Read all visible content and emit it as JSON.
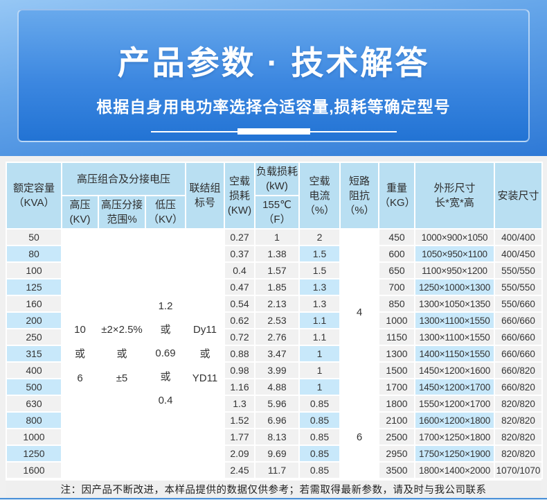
{
  "hero": {
    "title": "产品参数 · 技术解答",
    "subtitle": "根据自身用电功率选择合适容量,损耗等确定型号"
  },
  "colors": {
    "hero_top": "#96c7f5",
    "hero_bottom": "#2273d4",
    "header_cell": "#b9dff2",
    "stripe_blue": "#c8e8fa",
    "cell_gray": "#f1f1f1",
    "footer_line": "#4a90d8",
    "footer_strip": "#d8ebfa"
  },
  "table": {
    "header": {
      "capacity": [
        "额定容量",
        "（KVA）"
      ],
      "hv_group": "高压组合及分接电压",
      "hv": [
        "高压",
        "(KV)"
      ],
      "hv_tap": [
        "高压分接",
        "范围%"
      ],
      "lv": [
        "低压",
        "（KV）"
      ],
      "vector": [
        "联结组",
        "标号"
      ],
      "no_load_loss": [
        "空载",
        "损耗",
        "(KW)"
      ],
      "load_loss": [
        "负载损耗",
        "(kW)"
      ],
      "load_loss_sub": [
        "155℃",
        "（F）"
      ],
      "no_load_current": [
        "空载",
        "电流",
        "（%）"
      ],
      "impedance": [
        "短路",
        "阻抗",
        "（%）"
      ],
      "weight": [
        "重量",
        "（KG）"
      ],
      "dims": [
        "外形尺寸",
        "长*宽*高"
      ],
      "install": "安装尺寸"
    },
    "merged": {
      "hv_lines": [
        "10",
        "或",
        "6"
      ],
      "hv_tap_lines": [
        "±2×2.5%",
        "或",
        "±5"
      ],
      "lv_lines": [
        "1.2",
        "或",
        "0.69",
        "或",
        "0.4"
      ],
      "vector_lines": [
        "Dy11",
        "或",
        "YD11"
      ],
      "impedance_top": "4",
      "impedance_bottom": "6"
    },
    "rows": [
      {
        "kva": "50",
        "no_load_loss": "0.27",
        "load_loss": "1",
        "no_load_current": "2",
        "weight": "450",
        "dims": "1000×900×1050",
        "install": "400/400"
      },
      {
        "kva": "80",
        "no_load_loss": "0.37",
        "load_loss": "1.38",
        "no_load_current": "1.5",
        "weight": "600",
        "dims": "1050×950×1100",
        "install": "400/450"
      },
      {
        "kva": "100",
        "no_load_loss": "0.4",
        "load_loss": "1.57",
        "no_load_current": "1.5",
        "weight": "650",
        "dims": "1100×950×1200",
        "install": "550/550"
      },
      {
        "kva": "125",
        "no_load_loss": "0.47",
        "load_loss": "1.85",
        "no_load_current": "1.3",
        "weight": "700",
        "dims": "1250×1000×1300",
        "install": "550/550"
      },
      {
        "kva": "160",
        "no_load_loss": "0.54",
        "load_loss": "2.13",
        "no_load_current": "1.3",
        "weight": "850",
        "dims": "1300×1050×1350",
        "install": "550/660"
      },
      {
        "kva": "200",
        "no_load_loss": "0.62",
        "load_loss": "2.53",
        "no_load_current": "1.1",
        "weight": "1000",
        "dims": "1300×1100×1550",
        "install": "660/660"
      },
      {
        "kva": "250",
        "no_load_loss": "0.72",
        "load_loss": "2.76",
        "no_load_current": "1.1",
        "weight": "1150",
        "dims": "1300×1100×1550",
        "install": "660/660"
      },
      {
        "kva": "315",
        "no_load_loss": "0.88",
        "load_loss": "3.47",
        "no_load_current": "1",
        "weight": "1300",
        "dims": "1400×1150×1550",
        "install": "660/660"
      },
      {
        "kva": "400",
        "no_load_loss": "0.98",
        "load_loss": "3.99",
        "no_load_current": "1",
        "weight": "1500",
        "dims": "1450×1200×1600",
        "install": "660/820"
      },
      {
        "kva": "500",
        "no_load_loss": "1.16",
        "load_loss": "4.88",
        "no_load_current": "1",
        "weight": "1700",
        "dims": "1450×1200×1700",
        "install": "660/820"
      },
      {
        "kva": "630",
        "no_load_loss": "1.3",
        "load_loss": "5.96",
        "no_load_current": "0.85",
        "weight": "1800",
        "dims": "1550×1200×1700",
        "install": "820/820"
      },
      {
        "kva": "800",
        "no_load_loss": "1.52",
        "load_loss": "6.96",
        "no_load_current": "0.85",
        "weight": "2100",
        "dims": "1600×1200×1800",
        "install": "820/820"
      },
      {
        "kva": "1000",
        "no_load_loss": "1.77",
        "load_loss": "8.13",
        "no_load_current": "0.85",
        "weight": "2500",
        "dims": "1700×1250×1800",
        "install": "820/820"
      },
      {
        "kva": "1250",
        "no_load_loss": "2.09",
        "load_loss": "9.69",
        "no_load_current": "0.85",
        "weight": "2950",
        "dims": "1750×1250×1900",
        "install": "820/820"
      },
      {
        "kva": "1600",
        "no_load_loss": "2.45",
        "load_loss": "11.7",
        "no_load_current": "0.85",
        "weight": "3500",
        "dims": "1800×1400×2000",
        "install": "1070/1070"
      }
    ]
  },
  "note": "注：因产品不断改进，本样品提供的数据仅供参考；若需取得最新参数，请及时与我公司联系"
}
